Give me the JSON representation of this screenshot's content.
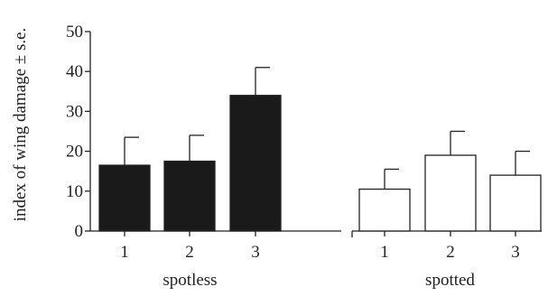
{
  "chart_data": {
    "type": "bar",
    "ylabel": "index of wing damage ± s.e.",
    "ylim": [
      0,
      50
    ],
    "yticks": [
      0,
      10,
      20,
      30,
      40,
      50
    ],
    "groups": [
      {
        "name": "spotless",
        "categories": [
          "1",
          "2",
          "3"
        ],
        "values": [
          16.5,
          17.5,
          34
        ],
        "errors": [
          7,
          6.5,
          7
        ],
        "fill": "#1a1a1a"
      },
      {
        "name": "spotted",
        "categories": [
          "1",
          "2",
          "3"
        ],
        "values": [
          10.5,
          19,
          14
        ],
        "errors": [
          5,
          6,
          6
        ],
        "fill": "#ffffff"
      }
    ],
    "colors": {
      "axis": "#222222",
      "stroke": "#222222"
    }
  }
}
